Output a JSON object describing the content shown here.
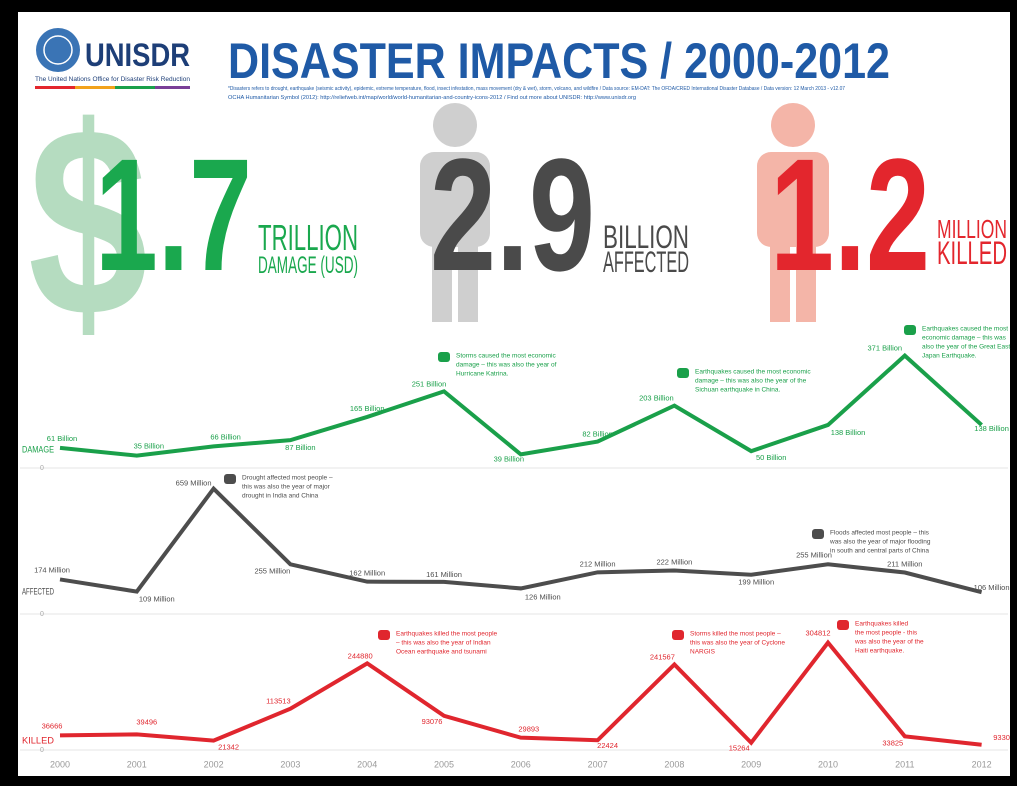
{
  "header": {
    "org": "UNISDR",
    "org_full": "The United Nations Office for Disaster Risk Reduction",
    "title": "DISASTER IMPACTS / 2000-2012",
    "notes": [
      "*Disasters refers to drought, earthquake (seismic activity), epidemic, extreme temperature, flood, insect infestation, mass movement (dry & wet), storm, volcano, and wildfire / Data source: EM-DAT: The OFDA/CRED International Disaster Database / Data version: 12 March 2013 - v12.07",
      "OCHA Humanitarian Symbol (2012): http://reliefweb.int/map/world/world-humanitarian-and-country-icons-2012 / Find out more about UNISDR: http://www.unisdr.org"
    ]
  },
  "stats": [
    {
      "symbol": "$",
      "number": "1.7",
      "unit": "TRILLION",
      "label": "DAMAGE (USD)"
    },
    {
      "number": "2.9",
      "unit": "BILLION",
      "label": "AFFECTED"
    },
    {
      "number": "1.2",
      "unit": "MILLION",
      "label": "KILLED"
    }
  ],
  "chart_data": {
    "type": "line",
    "categories": [
      "2000",
      "2001",
      "2002",
      "2003",
      "2004",
      "2005",
      "2006",
      "2007",
      "2008",
      "2009",
      "2010",
      "2011",
      "2012"
    ],
    "series": [
      {
        "name": "DAMAGE",
        "color": "#1aa04a",
        "ylim": [
          0,
          400
        ],
        "yticks": [
          0
        ],
        "values": [
          61,
          35,
          66,
          87,
          165,
          251,
          39,
          82,
          203,
          50,
          138,
          371,
          138
        ],
        "value_labels": [
          "61 Billion",
          "35 Billion",
          "66 Billion",
          "87 Billion",
          "165 Billion",
          "251 Billion",
          "39 Billion",
          "82 Billion",
          "203 Billion",
          "50 Billion",
          "138 Billion",
          "371 Billion",
          "138 Billion"
        ],
        "annotations": [
          [
            "Storms caused the most economic",
            "damage – this was also the year of",
            "Hurricane Katrina."
          ],
          [
            "Earthquakes caused the most economic",
            "damage – this was also the year of the",
            "Sichuan earthquake in China."
          ],
          [
            "Earthquakes caused the most",
            "economic damage – this was",
            "also the year of the Great East",
            "Japan Earthquake."
          ]
        ]
      },
      {
        "name": "AFFECTED",
        "color": "#4d4d4d",
        "ylim": [
          0,
          700
        ],
        "yticks": [
          0
        ],
        "values": [
          174,
          109,
          659,
          255,
          162,
          161,
          126,
          212,
          222,
          199,
          255,
          211,
          106
        ],
        "value_labels": [
          "174 Million",
          "109 Million",
          "659 Million",
          "255 Million",
          "162 Million",
          "161 Million",
          "126 Million",
          "212 Million",
          "222 Million",
          "199 Million",
          "255 Million",
          "211 Million",
          "106 Million"
        ],
        "annotations": [
          [
            "Drought affected most people –",
            "this was also the year of major",
            "drought in India and China"
          ],
          [
            "Floods affected most people – this",
            "was also the year of major flooding",
            "in south and central parts of China"
          ]
        ]
      },
      {
        "name": "KILLED",
        "color": "#e0262e",
        "ylim": [
          0,
          350000
        ],
        "yticks": [
          0
        ],
        "values": [
          36666,
          39496,
          21342,
          113513,
          244880,
          93076,
          29893,
          22424,
          241567,
          15264,
          304812,
          33825,
          9330
        ],
        "annotations": [
          [
            "Earthquakes killed the most people",
            "– this was also the year of Indian",
            "Ocean earthquake and tsunami"
          ],
          [
            "Storms killed the most people –",
            "this was also the year of Cyclone",
            "NARGIS"
          ],
          [
            "Earthquakes killed",
            "the most people - this",
            "was also the year of the",
            "Haiti earthquake."
          ]
        ]
      }
    ]
  }
}
